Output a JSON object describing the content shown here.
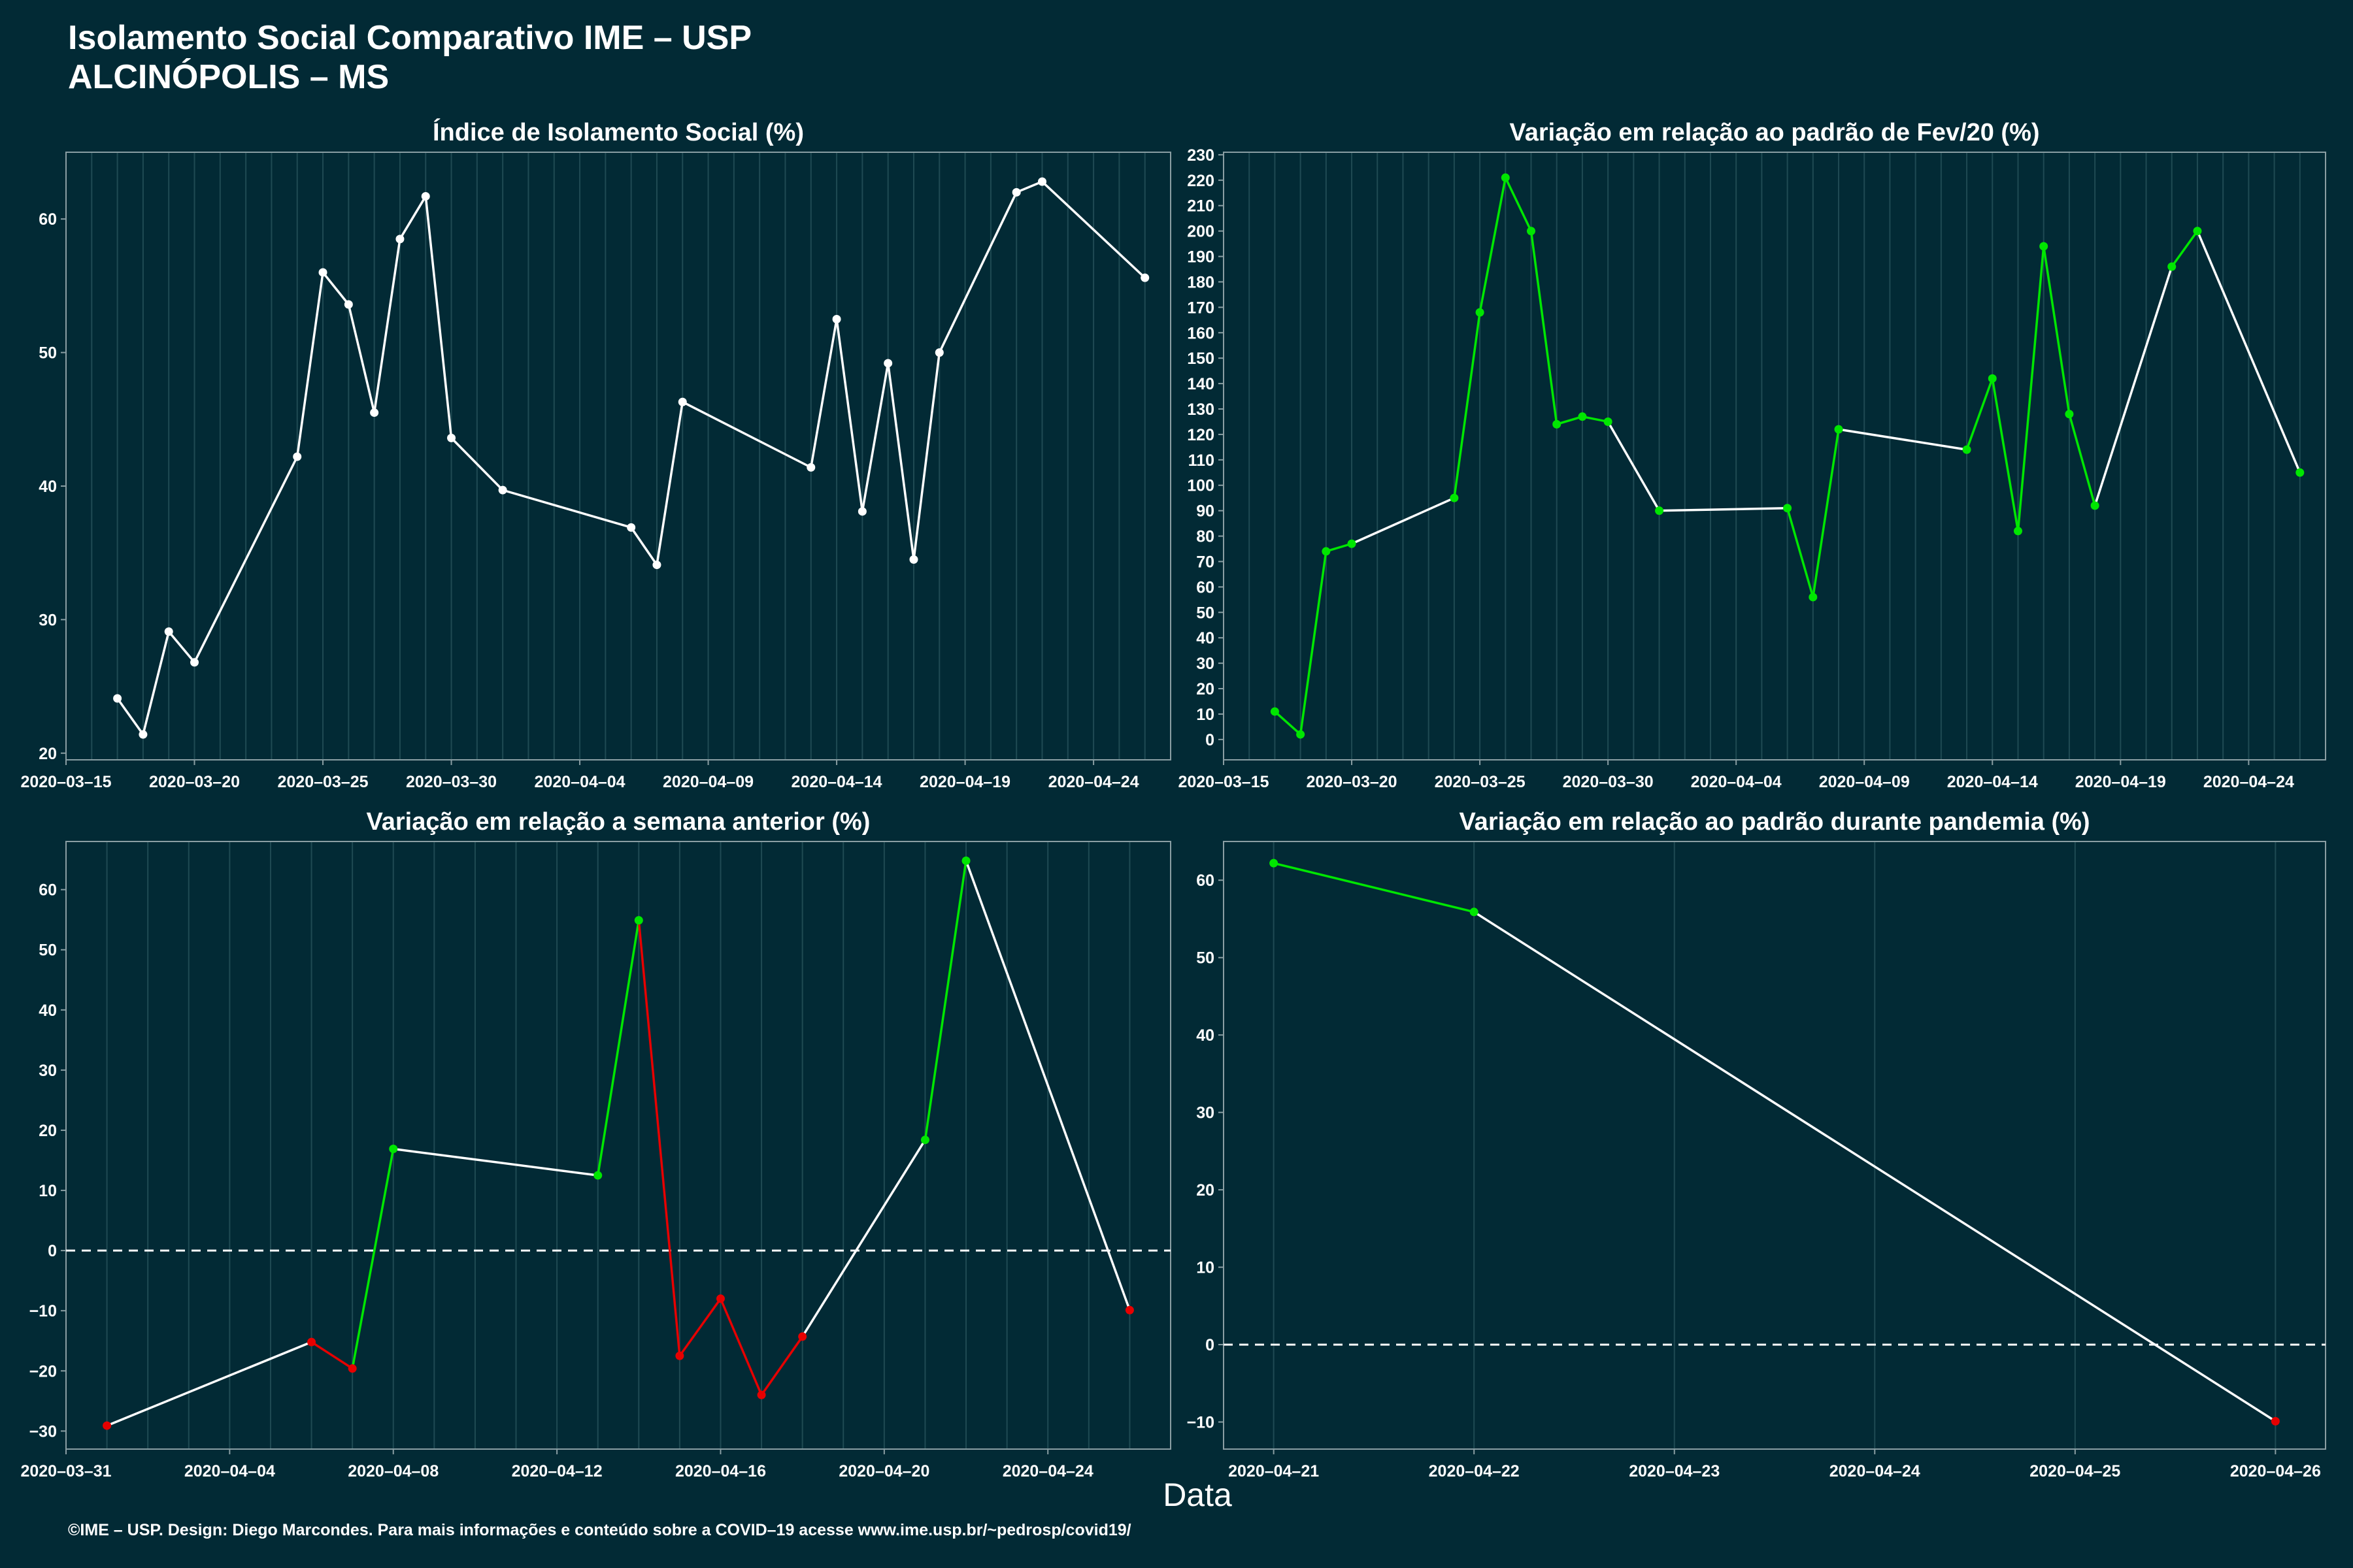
{
  "header": {
    "title": "Isolamento Social Comparativo IME – USP",
    "subtitle": "ALCINÓPOLIS – MS"
  },
  "footer": {
    "caption": "©IME – USP. Design: Diego Marcondes. Para mais informações e conteúdo sobre a COVID–19 acesse www.ime.usp.br/~pedrosp/covid19/"
  },
  "colors": {
    "background": "#022a35",
    "text": "#ffffff",
    "axis_line": "#8a9ea3",
    "grid": "#1f4a53",
    "line_neutral": "#ffffff",
    "up": "#00e600",
    "down": "#e60000"
  },
  "chart_data": [
    {
      "type": "line",
      "title": "Índice de Isolamento Social (%)",
      "xlabel": "Data",
      "ylabel": "",
      "x_ticks": [
        "2020–03–15",
        "2020–03–20",
        "2020–03–25",
        "2020–03–30",
        "2020–04–04",
        "2020–04–09",
        "2020–04–14",
        "2020–04–19",
        "2020–04–24"
      ],
      "y_ticks": [
        "20",
        "30",
        "40",
        "50",
        "60"
      ],
      "xlim": [
        "2020-03-15",
        "2020-04-27"
      ],
      "ylim": [
        19.5,
        65
      ],
      "grid": true,
      "points": [
        {
          "x": "2020-03-17",
          "y": 24.1
        },
        {
          "x": "2020-03-18",
          "y": 21.4
        },
        {
          "x": "2020-03-19",
          "y": 29.1
        },
        {
          "x": "2020-03-20",
          "y": 26.8
        },
        {
          "x": "2020-03-24",
          "y": 42.2
        },
        {
          "x": "2020-03-25",
          "y": 56.0
        },
        {
          "x": "2020-03-26",
          "y": 53.6
        },
        {
          "x": "2020-03-27",
          "y": 45.5
        },
        {
          "x": "2020-03-28",
          "y": 58.5
        },
        {
          "x": "2020-03-29",
          "y": 61.7
        },
        {
          "x": "2020-03-30",
          "y": 43.6
        },
        {
          "x": "2020-04-01",
          "y": 39.7
        },
        {
          "x": "2020-04-06",
          "y": 36.9
        },
        {
          "x": "2020-04-07",
          "y": 34.1
        },
        {
          "x": "2020-04-08",
          "y": 46.3
        },
        {
          "x": "2020-04-13",
          "y": 41.4
        },
        {
          "x": "2020-04-14",
          "y": 52.5
        },
        {
          "x": "2020-04-15",
          "y": 38.1
        },
        {
          "x": "2020-04-16",
          "y": 49.2
        },
        {
          "x": "2020-04-17",
          "y": 34.5
        },
        {
          "x": "2020-04-18",
          "y": 50.0
        },
        {
          "x": "2020-04-21",
          "y": 62.0
        },
        {
          "x": "2020-04-22",
          "y": 62.8
        },
        {
          "x": "2020-04-26",
          "y": 55.6
        }
      ]
    },
    {
      "type": "line",
      "title": "Variação em relação ao padrão de Fev/20 (%)",
      "xlabel": "Data",
      "ylabel": "",
      "x_ticks": [
        "2020–03–15",
        "2020–03–20",
        "2020–03–25",
        "2020–03–30",
        "2020–04–04",
        "2020–04–09",
        "2020–04–14",
        "2020–04–19",
        "2020–04–24"
      ],
      "y_ticks": [
        "0",
        "10",
        "20",
        "30",
        "40",
        "50",
        "60",
        "70",
        "80",
        "90",
        "100",
        "110",
        "120",
        "130",
        "140",
        "150",
        "160",
        "170",
        "180",
        "190",
        "200",
        "210",
        "220",
        "230"
      ],
      "xlim": [
        "2020-03-15",
        "2020-04-27"
      ],
      "ylim": [
        -8,
        231
      ],
      "grid": true,
      "points": [
        {
          "x": "2020-03-17",
          "y": 11,
          "color": "up"
        },
        {
          "x": "2020-03-18",
          "y": 2,
          "color": "up"
        },
        {
          "x": "2020-03-19",
          "y": 74,
          "color": "up"
        },
        {
          "x": "2020-03-20",
          "y": 77,
          "color": "up"
        },
        {
          "x": "2020-03-24",
          "y": 95,
          "color": "up"
        },
        {
          "x": "2020-03-25",
          "y": 168,
          "color": "up"
        },
        {
          "x": "2020-03-26",
          "y": 221,
          "color": "up"
        },
        {
          "x": "2020-03-27",
          "y": 200,
          "color": "up"
        },
        {
          "x": "2020-03-28",
          "y": 124,
          "color": "up"
        },
        {
          "x": "2020-03-29",
          "y": 127,
          "color": "up"
        },
        {
          "x": "2020-03-30",
          "y": 125,
          "color": "up"
        },
        {
          "x": "2020-04-01",
          "y": 90,
          "color": "up"
        },
        {
          "x": "2020-04-06",
          "y": 91,
          "color": "up"
        },
        {
          "x": "2020-04-07",
          "y": 56,
          "color": "up"
        },
        {
          "x": "2020-04-08",
          "y": 122,
          "color": "up"
        },
        {
          "x": "2020-04-13",
          "y": 114,
          "color": "up"
        },
        {
          "x": "2020-04-14",
          "y": 142,
          "color": "up"
        },
        {
          "x": "2020-04-15",
          "y": 82,
          "color": "up"
        },
        {
          "x": "2020-04-16",
          "y": 194,
          "color": "up"
        },
        {
          "x": "2020-04-17",
          "y": 128,
          "color": "up"
        },
        {
          "x": "2020-04-18",
          "y": 92,
          "color": "up"
        },
        {
          "x": "2020-04-21",
          "y": 186,
          "color": "up"
        },
        {
          "x": "2020-04-22",
          "y": 200,
          "color": "up"
        },
        {
          "x": "2020-04-26",
          "y": 105,
          "color": "up"
        }
      ],
      "segment_colors": [
        "up",
        "up",
        "up",
        "neutral",
        "up",
        "up",
        "up",
        "up",
        "up",
        "up",
        "neutral",
        "neutral",
        "up",
        "up",
        "neutral",
        "up",
        "up",
        "up",
        "up",
        "up",
        "neutral",
        "up",
        "neutral"
      ]
    },
    {
      "type": "line",
      "title": "Variação em relação a semana anterior (%)",
      "xlabel": "Data",
      "ylabel": "",
      "x_ticks": [
        "2020–03–31",
        "2020–04–04",
        "2020–04–08",
        "2020–04–12",
        "2020–04–16",
        "2020–04–20",
        "2020–04–24"
      ],
      "y_ticks": [
        "−30",
        "−20",
        "−10",
        "0",
        "10",
        "20",
        "30",
        "40",
        "50",
        "60"
      ],
      "xlim": [
        "2020-03-31",
        "2020-04-27"
      ],
      "ylim": [
        -33,
        68
      ],
      "grid": true,
      "reference_line": 0,
      "points": [
        {
          "x": "2020-04-01",
          "y": -29.1,
          "color": "down"
        },
        {
          "x": "2020-04-06",
          "y": -15.2,
          "color": "down"
        },
        {
          "x": "2020-04-07",
          "y": -19.6,
          "color": "down"
        },
        {
          "x": "2020-04-08",
          "y": 16.9,
          "color": "up"
        },
        {
          "x": "2020-04-13",
          "y": 12.5,
          "color": "up"
        },
        {
          "x": "2020-04-14",
          "y": 54.9,
          "color": "up"
        },
        {
          "x": "2020-04-15",
          "y": -17.5,
          "color": "down"
        },
        {
          "x": "2020-04-16",
          "y": -8.0,
          "color": "down"
        },
        {
          "x": "2020-04-17",
          "y": -24.0,
          "color": "down"
        },
        {
          "x": "2020-04-18",
          "y": -14.3,
          "color": "down"
        },
        {
          "x": "2020-04-21",
          "y": 18.4,
          "color": "up"
        },
        {
          "x": "2020-04-22",
          "y": 64.8,
          "color": "up"
        },
        {
          "x": "2020-04-26",
          "y": -9.9,
          "color": "down"
        }
      ],
      "segment_colors": [
        "neutral",
        "down",
        "up",
        "neutral",
        "up",
        "down",
        "down",
        "down",
        "down",
        "neutral",
        "up",
        "neutral"
      ]
    },
    {
      "type": "line",
      "title": "Variação em relação ao padrão durante pandemia (%)",
      "xlabel": "Data",
      "ylabel": "",
      "x_ticks": [
        "2020–04–21",
        "2020–04–22",
        "2020–04–23",
        "2020–04–24",
        "2020–04–25",
        "2020–04–26"
      ],
      "y_ticks": [
        "−10",
        "0",
        "10",
        "20",
        "30",
        "40",
        "50",
        "60"
      ],
      "xlim": [
        "2020-04-20.75",
        "2020-04-26.25"
      ],
      "ylim": [
        -13.5,
        65
      ],
      "grid": true,
      "reference_line": 0,
      "points": [
        {
          "x": "2020-04-21",
          "y": 62.2,
          "color": "up"
        },
        {
          "x": "2020-04-22",
          "y": 55.9,
          "color": "up"
        },
        {
          "x": "2020-04-26",
          "y": -9.9,
          "color": "down"
        }
      ],
      "segment_colors": [
        "up",
        "neutral"
      ]
    }
  ]
}
